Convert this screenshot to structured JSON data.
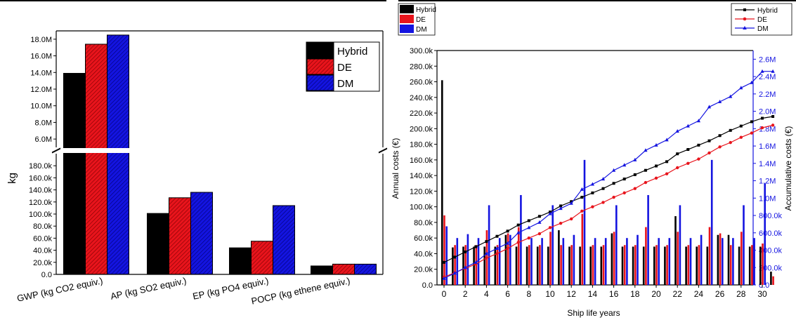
{
  "chart_data": [
    {
      "type": "bar",
      "ylabel": "kg",
      "categories": [
        "GWP (kg CO2 equiv.)",
        "AP (kg SO2 equiv.)",
        "EP (kg PO4 equiv.)",
        "POCP  (kg ethene equiv.)"
      ],
      "series": [
        {
          "name": "Hybrid",
          "values": [
            13900000,
            101000,
            44000,
            14000
          ]
        },
        {
          "name": "DE",
          "values": [
            17400000,
            127000,
            55000,
            17000
          ]
        },
        {
          "name": "DM",
          "values": [
            18500000,
            136000,
            114000,
            17000
          ]
        }
      ],
      "axis_break": true,
      "lower_ylim": [
        0,
        200000
      ],
      "upper_ylim": [
        5000000,
        19000000
      ],
      "lower_ticks": [
        "0.0",
        "20.0k",
        "40.0k",
        "60.0k",
        "80.0k",
        "100.0k",
        "120.0k",
        "140.0k",
        "160.0k",
        "180.0k"
      ],
      "upper_ticks": [
        "6.0M",
        "8.0M",
        "10.0M",
        "12.0M",
        "14.0M",
        "16.0M",
        "18.0M"
      ],
      "legend_position": "top-right",
      "colors": {
        "Hybrid": "#000000",
        "DE": "#e8141c",
        "DM": "#1414e0"
      }
    },
    {
      "type": "bar+line",
      "xlabel": "Ship life years",
      "ylabel_left": "Annual costs (€)",
      "ylabel_right": "Accumulative costs (€)",
      "x_ticks": [
        "0",
        "2",
        "4",
        "6",
        "8",
        "10",
        "12",
        "14",
        "16",
        "18",
        "20",
        "22",
        "24",
        "26",
        "28",
        "30"
      ],
      "ylim_left": [
        0,
        300000
      ],
      "ylim_right": [
        0,
        2700000
      ],
      "left_ticks": [
        "0.0",
        "20.0k",
        "40.0k",
        "60.0k",
        "80.0k",
        "100.0k",
        "120.0k",
        "140.0k",
        "160.0k",
        "180.0k",
        "200.0k",
        "220.0k",
        "240.0k",
        "260.0k",
        "280.0k",
        "300.0k"
      ],
      "right_ticks": [
        "0.0",
        "200.0k",
        "400.0k",
        "600.0k",
        "800.0k",
        "1.0M",
        "1.2M",
        "1.4M",
        "1.6M",
        "1.8M",
        "2.0M",
        "2.2M",
        "2.4M",
        "2.6M"
      ],
      "years": [
        0,
        1,
        2,
        3,
        4,
        5,
        6,
        7,
        8,
        9,
        10,
        11,
        12,
        13,
        14,
        15,
        16,
        17,
        18,
        19,
        20,
        21,
        22,
        23,
        24,
        25,
        26,
        27,
        28,
        29,
        30,
        31
      ],
      "bar_series": [
        {
          "name": "Hybrid",
          "values": [
            262000,
            48000,
            49000,
            49000,
            49000,
            49000,
            64000,
            49000,
            49000,
            49000,
            49000,
            70000,
            49000,
            49000,
            49000,
            49000,
            66000,
            49000,
            49000,
            49000,
            49000,
            49000,
            88000,
            49000,
            49000,
            49000,
            64000,
            64000,
            49000,
            49000,
            49000,
            17000
          ]
        },
        {
          "name": "DE",
          "values": [
            89000,
            51000,
            51000,
            51000,
            70000,
            51000,
            66000,
            74000,
            51000,
            51000,
            68000,
            51000,
            51000,
            91000,
            51000,
            51000,
            68000,
            51000,
            51000,
            74000,
            51000,
            51000,
            68000,
            51000,
            51000,
            74000,
            66000,
            51000,
            68000,
            51000,
            53000,
            11000
          ]
        },
        {
          "name": "DM",
          "values": [
            75000,
            60000,
            65000,
            60000,
            102000,
            60000,
            64000,
            115000,
            60000,
            60000,
            102000,
            60000,
            64000,
            160000,
            60000,
            60000,
            102000,
            60000,
            64000,
            115000,
            60000,
            60000,
            102000,
            60000,
            64000,
            160000,
            60000,
            60000,
            102000,
            60000,
            130000,
            0
          ]
        }
      ],
      "line_series": [
        {
          "name": "Hybrid",
          "marker": "square",
          "values": [
            260000,
            320000,
            380000,
            440000,
            500000,
            560000,
            620000,
            690000,
            740000,
            790000,
            840000,
            910000,
            960000,
            1010000,
            1060000,
            1110000,
            1170000,
            1220000,
            1270000,
            1320000,
            1370000,
            1420000,
            1510000,
            1560000,
            1610000,
            1660000,
            1720000,
            1780000,
            1830000,
            1880000,
            1920000,
            1940000
          ]
        },
        {
          "name": "DE",
          "marker": "circle",
          "values": [
            90000,
            140000,
            190000,
            240000,
            310000,
            360000,
            420000,
            490000,
            540000,
            590000,
            660000,
            710000,
            760000,
            850000,
            900000,
            950000,
            1010000,
            1060000,
            1110000,
            1180000,
            1230000,
            1280000,
            1350000,
            1400000,
            1450000,
            1520000,
            1590000,
            1640000,
            1700000,
            1750000,
            1810000,
            1840000
          ]
        },
        {
          "name": "DM",
          "marker": "triangle",
          "values": [
            75000,
            135000,
            200000,
            260000,
            360000,
            420000,
            480000,
            600000,
            660000,
            720000,
            820000,
            880000,
            940000,
            1100000,
            1160000,
            1220000,
            1320000,
            1380000,
            1440000,
            1550000,
            1610000,
            1670000,
            1770000,
            1830000,
            1890000,
            2050000,
            2110000,
            2170000,
            2270000,
            2330000,
            2460000,
            2460000
          ]
        }
      ],
      "colors": {
        "Hybrid": "#000000",
        "DE": "#e8141c",
        "DM": "#1414e0"
      }
    }
  ]
}
